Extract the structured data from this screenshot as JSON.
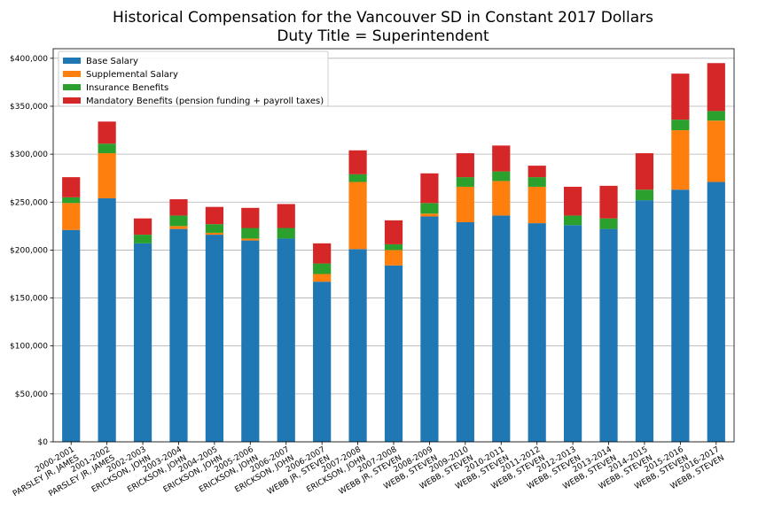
{
  "chart_data": {
    "type": "bar",
    "stacked": true,
    "title": "Historical Compensation for the Vancouver SD in Constant 2017 Dollars",
    "subtitle": "Duty Title = Superintendent",
    "categories": [
      "2000-2001\nPARSLEY JR, JAMES",
      "2001-2002\nPARSLEY JR, JAMES",
      "2002-2003\nERICKSON, JOHN",
      "2003-2004\nERICKSON, JOHN",
      "2004-2005\nERICKSON, JOHN",
      "2005-2006\nERICKSON, JOHN",
      "2006-2007\nERICKSON, JOHN",
      "2006-2007\nWEBB JR, STEVEN",
      "2007-2008\nERICKSON, JOHN",
      "2007-2008\nWEBB JR, STEVEN",
      "2008-2009\nWEBB, STEVEN",
      "2009-2010\nWEBB, STEVEN",
      "2010-2011\nWEBB, STEVEN",
      "2011-2012\nWEBB, STEVEN",
      "2012-2013\nWEBB, STEVEN",
      "2013-2014\nWEBB, STEVEN",
      "2014-2015\nWEBB, STEVEN",
      "2015-2016\nWEBB, STEVEN",
      "2016-2017\nWEBB, STEVEN"
    ],
    "series": [
      {
        "name": "Base Salary",
        "color": "#1f77b4",
        "values": [
          221000,
          254000,
          207000,
          222000,
          216000,
          210000,
          212000,
          167000,
          201000,
          184000,
          235000,
          229000,
          236000,
          228000,
          226000,
          222000,
          252000,
          263000,
          271000
        ]
      },
      {
        "name": "Supplemental Salary",
        "color": "#ff7f0e",
        "values": [
          28000,
          47000,
          0,
          3000,
          2000,
          2000,
          0,
          8000,
          70000,
          16000,
          3000,
          37000,
          36000,
          38000,
          0,
          0,
          0,
          62000,
          64000
        ]
      },
      {
        "name": "Insurance Benefits",
        "color": "#2ca02c",
        "values": [
          6000,
          10000,
          9000,
          11000,
          9000,
          11000,
          11000,
          11000,
          8000,
          6000,
          11000,
          10000,
          10000,
          10000,
          10000,
          11000,
          11000,
          11000,
          10000
        ]
      },
      {
        "name": "Mandatory Benefits (pension funding + payroll taxes)",
        "color": "#d62728",
        "values": [
          21000,
          23000,
          17000,
          17000,
          18000,
          21000,
          25000,
          21000,
          25000,
          25000,
          31000,
          25000,
          27000,
          12000,
          30000,
          34000,
          38000,
          48000,
          50000
        ]
      }
    ],
    "ylim": [
      0,
      410000
    ],
    "yticks": [
      0,
      50000,
      100000,
      150000,
      200000,
      250000,
      300000,
      350000,
      400000
    ],
    "ytick_labels": [
      "$0",
      "$50,000",
      "$100,000",
      "$150,000",
      "$200,000",
      "$250,000",
      "$300,000",
      "$350,000",
      "$400,000"
    ],
    "grid": "y",
    "legend_position": "top-left"
  }
}
